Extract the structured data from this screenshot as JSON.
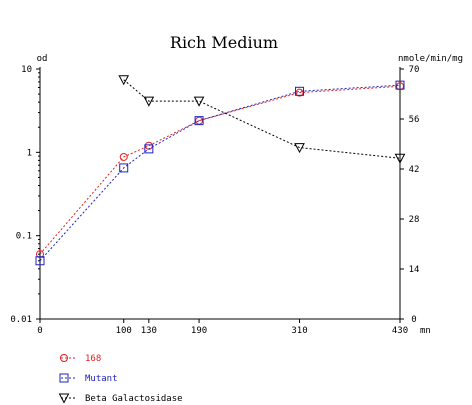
{
  "chart_data": {
    "type": "line",
    "title": "Rich Medium",
    "xlabel": "mn",
    "ylabel": "od",
    "y2label": "nmole/min/mg",
    "xlim": [
      0,
      430
    ],
    "ylim": [
      0.01,
      10
    ],
    "y2lim": [
      0,
      70
    ],
    "y_scale": "log",
    "x_ticks": [
      0,
      100,
      130,
      190,
      310,
      430
    ],
    "y_ticks": [
      "10",
      "1",
      "0.1",
      "0.01"
    ],
    "y2_ticks": [
      "70",
      "56",
      "42",
      "28",
      "14",
      "0"
    ],
    "grid": false,
    "legend_position": "bottom-left",
    "series": [
      {
        "name": "168",
        "axis": "left",
        "color": "#e02020",
        "marker": "circle",
        "x": [
          0,
          100,
          130,
          190,
          310,
          430
        ],
        "values": [
          0.06,
          0.88,
          1.2,
          2.4,
          5.2,
          6.2
        ]
      },
      {
        "name": "Mutant",
        "axis": "left",
        "color": "#2020c0",
        "marker": "square",
        "x": [
          0,
          100,
          130,
          190,
          310,
          430
        ],
        "values": [
          0.05,
          0.65,
          1.1,
          2.4,
          5.4,
          6.4
        ]
      },
      {
        "name": "Beta Galactosidase",
        "axis": "right",
        "color": "#000000",
        "marker": "triangle-down",
        "x": [
          100,
          130,
          190,
          310,
          430
        ],
        "values": [
          67,
          61,
          61,
          48,
          45
        ]
      }
    ]
  }
}
